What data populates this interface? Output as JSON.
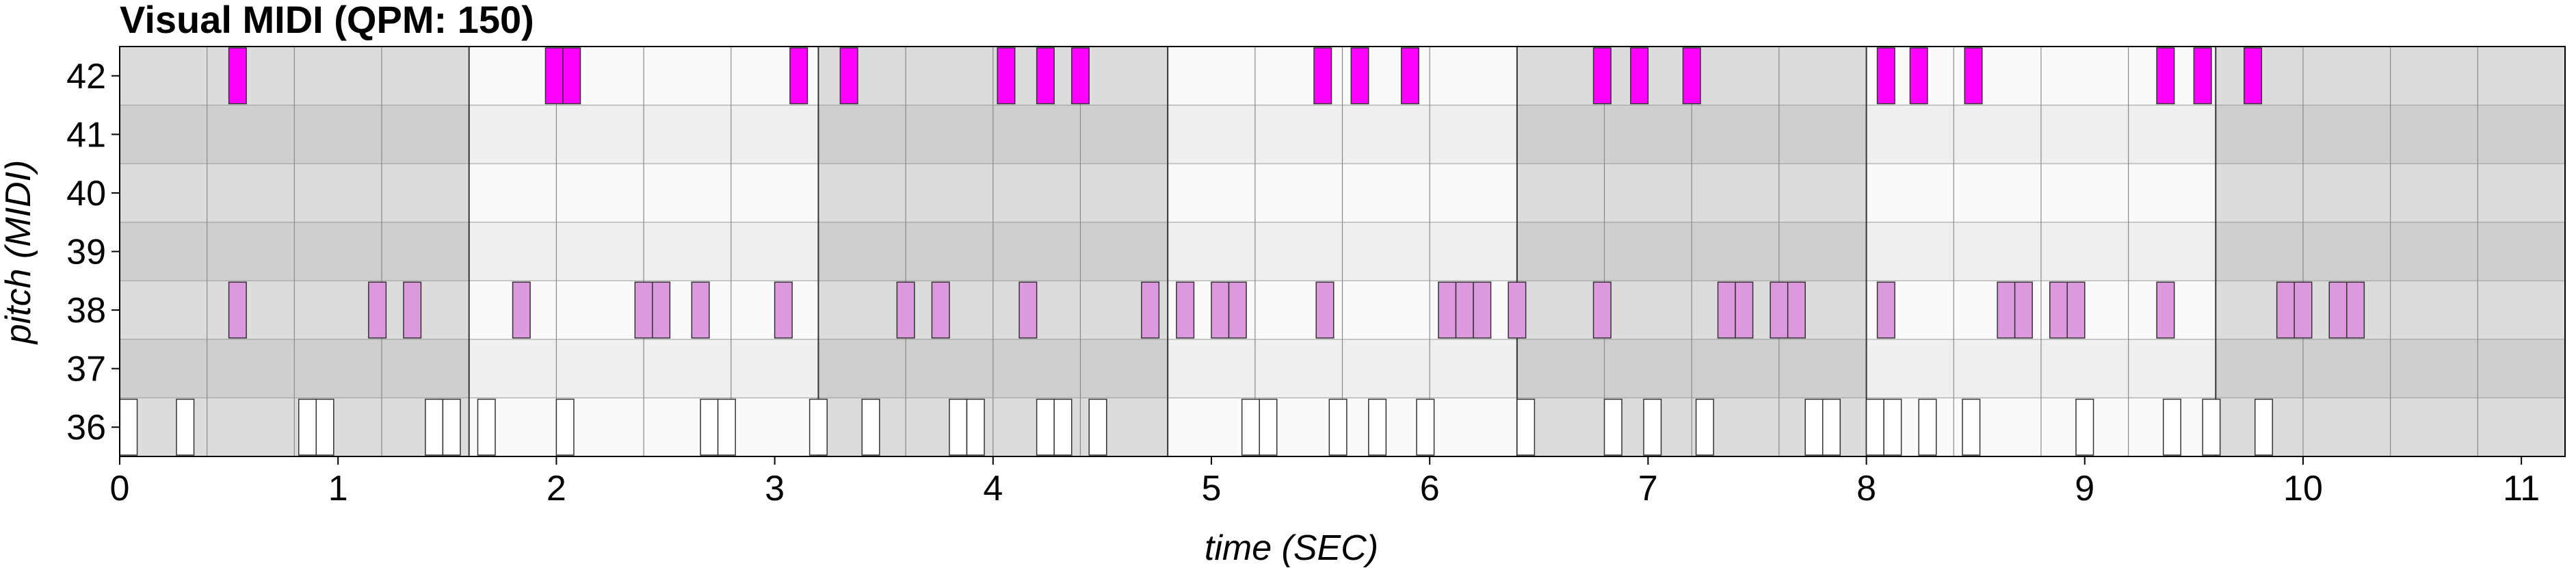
{
  "chart_data": {
    "type": "piano-roll",
    "title": "Visual MIDI (QPM: 150)",
    "xlabel": "time (SEC)",
    "ylabel": "pitch (MIDI)",
    "xlim": [
      0,
      11.2
    ],
    "x_ticks": [
      0,
      1,
      2,
      3,
      4,
      5,
      6,
      7,
      8,
      9,
      10,
      11
    ],
    "pitches": [
      36,
      37,
      38,
      39,
      40,
      41,
      42
    ],
    "bar_lines": [
      0,
      1.6,
      3.2,
      4.8,
      6.4,
      8.0,
      9.6,
      11.2
    ],
    "beat_seconds": 0.4,
    "notes": [
      {
        "pitch": 42,
        "color": "#ff00ff",
        "onsets": [
          0.5,
          1.95,
          2.03,
          3.07,
          3.3,
          4.02,
          4.2,
          4.36,
          5.47,
          5.64,
          5.87,
          6.75,
          6.92,
          7.16,
          8.05,
          8.2,
          8.45,
          9.33,
          9.5,
          9.73
        ]
      },
      {
        "pitch": 38,
        "color": "#dd99dd",
        "onsets": [
          0.5,
          1.14,
          1.3,
          1.8,
          2.36,
          2.44,
          2.62,
          3.0,
          3.56,
          3.72,
          4.12,
          4.68,
          4.84,
          5.0,
          5.08,
          5.48,
          6.04,
          6.12,
          6.2,
          6.36,
          6.75,
          7.32,
          7.4,
          7.56,
          7.64,
          8.05,
          8.6,
          8.68,
          8.84,
          8.92,
          9.33,
          9.88,
          9.96,
          10.12,
          10.2
        ]
      },
      {
        "pitch": 36,
        "color": "#ffffff",
        "onsets": [
          0.0,
          0.26,
          0.82,
          0.9,
          1.4,
          1.48,
          1.64,
          2.0,
          2.66,
          2.74,
          3.16,
          3.4,
          3.8,
          3.88,
          4.2,
          4.28,
          4.44,
          5.14,
          5.22,
          5.54,
          5.72,
          5.94,
          6.4,
          6.8,
          6.98,
          7.22,
          7.72,
          7.8,
          8.0,
          8.08,
          8.24,
          8.44,
          8.96,
          9.36,
          9.54,
          9.78
        ]
      }
    ],
    "note_duration": 0.08
  }
}
